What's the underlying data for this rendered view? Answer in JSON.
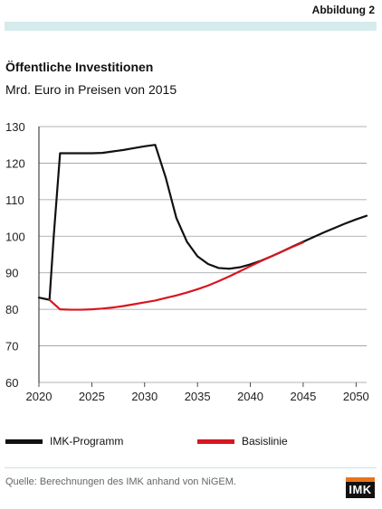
{
  "figure_label": "Abbildung 2",
  "chart_data": {
    "type": "line",
    "title": "Öffentliche Investitionen",
    "subtitle": "Mrd. Euro in Preisen von 2015",
    "xlim": [
      2020,
      2051
    ],
    "ylim": [
      60,
      130
    ],
    "x_ticks": [
      2020,
      2025,
      2030,
      2035,
      2040,
      2045,
      2050
    ],
    "y_ticks": [
      60,
      70,
      80,
      90,
      100,
      110,
      120,
      130
    ],
    "grid": "horizontal",
    "legend_position": "bottom",
    "series": [
      {
        "name": "IMK-Programm",
        "color": "#111111",
        "x": [
          2020,
          2021,
          2021.4,
          2022,
          2023,
          2024,
          2025,
          2026,
          2027,
          2028,
          2029,
          2030,
          2031,
          2032,
          2033,
          2034,
          2035,
          2036,
          2037,
          2038,
          2039,
          2040,
          2041,
          2042,
          2043,
          2044,
          2045,
          2046,
          2047,
          2048,
          2049,
          2050,
          2051
        ],
        "y": [
          83.2,
          82.6,
          100,
          122.7,
          122.7,
          122.7,
          122.7,
          122.8,
          123.2,
          123.6,
          124.1,
          124.6,
          125.0,
          116,
          105,
          98.5,
          94.5,
          92.4,
          91.3,
          91.1,
          91.5,
          92.3,
          93.3,
          94.5,
          95.8,
          97.2,
          98.5,
          99.8,
          101.1,
          102.3,
          103.5,
          104.6,
          105.6
        ]
      },
      {
        "name": "Basislinie",
        "color": "#d7161f",
        "x": [
          2021,
          2022,
          2023,
          2024,
          2025,
          2026,
          2027,
          2028,
          2029,
          2030,
          2031,
          2032,
          2033,
          2034,
          2035,
          2036,
          2037,
          2038,
          2039,
          2040,
          2041,
          2042,
          2043,
          2044,
          2045
        ],
        "y": [
          82.6,
          80.0,
          79.9,
          79.9,
          80.0,
          80.2,
          80.5,
          80.9,
          81.4,
          81.9,
          82.4,
          83.1,
          83.8,
          84.6,
          85.5,
          86.5,
          87.7,
          89.0,
          90.4,
          91.8,
          93.2,
          94.5,
          95.8,
          97.1,
          98.3
        ]
      }
    ]
  },
  "source": "Quelle: Berechnungen des IMK anhand von NiGEM.",
  "logo_text": "IMK"
}
